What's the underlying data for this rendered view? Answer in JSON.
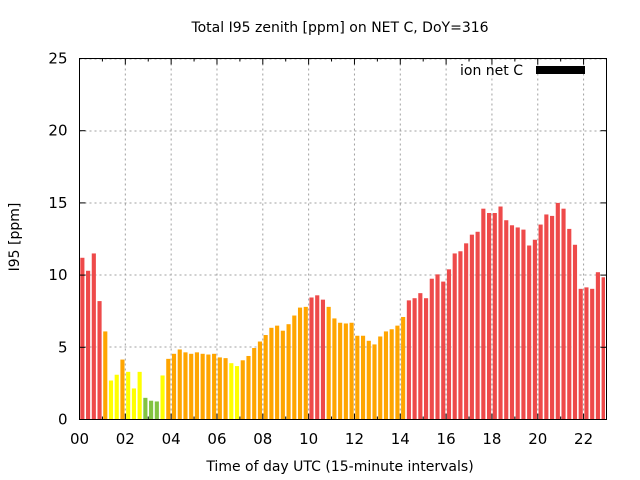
{
  "chart_data": {
    "type": "bar",
    "title": "Total I95 zenith [ppm] on NET C, DoY=316",
    "xlabel": "Time of day UTC (15-minute intervals)",
    "ylabel": "I95 [ppm]",
    "xlim": [
      0,
      23
    ],
    "ylim": [
      0,
      25
    ],
    "x_unit": "hours UTC",
    "bar_interval_hours": 0.25,
    "xticks": [
      0,
      2,
      4,
      6,
      8,
      10,
      12,
      14,
      16,
      18,
      20,
      22
    ],
    "xtick_labels": [
      "00",
      "02",
      "04",
      "06",
      "08",
      "10",
      "12",
      "14",
      "16",
      "18",
      "20",
      "22"
    ],
    "yticks": [
      0,
      5,
      10,
      15,
      20,
      25
    ],
    "ytick_labels": [
      "0",
      "5",
      "10",
      "15",
      "20",
      "25"
    ],
    "grid": true,
    "legend": {
      "placement": "top-right",
      "entries": [
        {
          "label": "ion net C",
          "color": "#000000"
        }
      ]
    },
    "color_classes": {
      "red": "#ee4a4a",
      "orange": "#ffa500",
      "yellow": "#ffff00",
      "green": "#82c341"
    },
    "values": [
      11.2,
      10.3,
      11.5,
      8.2,
      6.1,
      2.7,
      3.1,
      4.15,
      3.3,
      2.15,
      3.3,
      1.5,
      1.3,
      1.25,
      3.05,
      4.2,
      4.55,
      4.85,
      4.65,
      4.55,
      4.65,
      4.55,
      4.5,
      4.55,
      4.3,
      4.25,
      3.9,
      3.7,
      4.1,
      4.4,
      4.95,
      5.4,
      5.85,
      6.35,
      6.5,
      6.15,
      6.6,
      7.2,
      7.75,
      7.8,
      8.45,
      8.6,
      8.3,
      7.8,
      7.0,
      6.7,
      6.65,
      6.7,
      5.8,
      5.8,
      5.45,
      5.2,
      5.75,
      6.1,
      6.25,
      6.5,
      7.1,
      8.25,
      8.4,
      8.75,
      8.4,
      9.75,
      10.05,
      9.55,
      10.4,
      11.5,
      11.65,
      12.2,
      12.8,
      13.0,
      14.6,
      14.3,
      14.3,
      14.75,
      13.8,
      13.45,
      13.3,
      13.15,
      12.05,
      12.45,
      13.5,
      14.2,
      14.1,
      15.0,
      14.6,
      13.2,
      12.1,
      9.05,
      9.15,
      9.05,
      10.2,
      9.85
    ],
    "colors": [
      "red",
      "red",
      "red",
      "red",
      "orange",
      "yellow",
      "yellow",
      "orange",
      "yellow",
      "yellow",
      "yellow",
      "green",
      "green",
      "green",
      "yellow",
      "orange",
      "orange",
      "orange",
      "orange",
      "orange",
      "orange",
      "orange",
      "orange",
      "orange",
      "orange",
      "orange",
      "yellow",
      "yellow",
      "orange",
      "orange",
      "orange",
      "orange",
      "orange",
      "orange",
      "orange",
      "orange",
      "orange",
      "orange",
      "orange",
      "orange",
      "red",
      "red",
      "red",
      "orange",
      "orange",
      "orange",
      "orange",
      "orange",
      "orange",
      "orange",
      "orange",
      "orange",
      "orange",
      "orange",
      "orange",
      "orange",
      "orange",
      "red",
      "red",
      "red",
      "red",
      "red",
      "red",
      "red",
      "red",
      "red",
      "red",
      "red",
      "red",
      "red",
      "red",
      "red",
      "red",
      "red",
      "red",
      "red",
      "red",
      "red",
      "red",
      "red",
      "red",
      "red",
      "red",
      "red",
      "red",
      "red",
      "red",
      "red",
      "red",
      "red",
      "red",
      "red"
    ]
  }
}
